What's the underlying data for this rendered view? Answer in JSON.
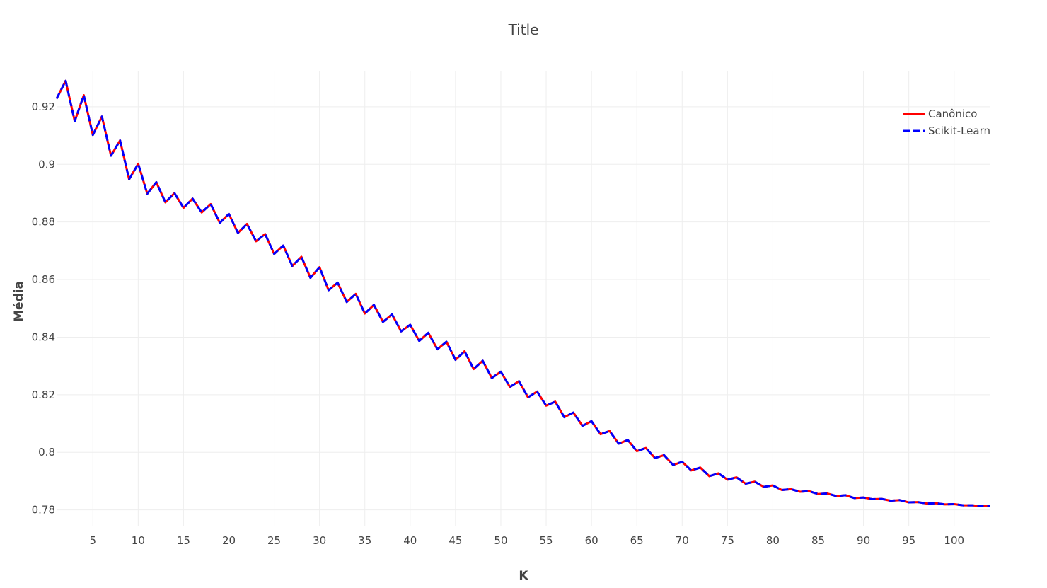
{
  "chart_data": {
    "type": "line",
    "title": "Title",
    "xlabel": "K",
    "ylabel": "Média",
    "xlim": [
      1,
      104
    ],
    "ylim": [
      0.7745,
      0.9325
    ],
    "x_ticks": [
      5,
      10,
      15,
      20,
      25,
      30,
      35,
      40,
      45,
      50,
      55,
      60,
      65,
      70,
      75,
      80,
      85,
      90,
      95,
      100
    ],
    "y_ticks": [
      0.78,
      0.8,
      0.82,
      0.84,
      0.86,
      0.88,
      0.9,
      0.92
    ],
    "y_tick_labels": [
      "0.78",
      "0.8",
      "0.82",
      "0.84",
      "0.86",
      "0.88",
      "0.9",
      "0.92"
    ],
    "grid": true,
    "legend_position": "top-right",
    "series": [
      {
        "name": "Canônico",
        "color": "#ff0000",
        "dash": "solid",
        "x": [
          1,
          2,
          3,
          4,
          5,
          6,
          7,
          8,
          9,
          10,
          11,
          12,
          13,
          14,
          15,
          16,
          17,
          18,
          19,
          20,
          21,
          22,
          23,
          24,
          25,
          26,
          27,
          28,
          29,
          30,
          31,
          32,
          33,
          34,
          35,
          36,
          37,
          38,
          39,
          40,
          41,
          42,
          43,
          44,
          45,
          46,
          47,
          48,
          49,
          50,
          51,
          52,
          53,
          54,
          55,
          56,
          57,
          58,
          59,
          60,
          61,
          62,
          63,
          64,
          65,
          66,
          67,
          68,
          69,
          70,
          71,
          72,
          73,
          74,
          75,
          76,
          77,
          78,
          79,
          80,
          81,
          82,
          83,
          84,
          85,
          86,
          87,
          88,
          89,
          90,
          91,
          92,
          93,
          94,
          95,
          96,
          97,
          98,
          99,
          100,
          101,
          102,
          103,
          104
        ],
        "values": [
          0.9228,
          0.929,
          0.915,
          0.924,
          0.9102,
          0.9166,
          0.903,
          0.9083,
          0.8948,
          0.9002,
          0.8898,
          0.8938,
          0.8868,
          0.89,
          0.8849,
          0.8881,
          0.8833,
          0.8862,
          0.8797,
          0.8828,
          0.8762,
          0.8793,
          0.8733,
          0.8758,
          0.8689,
          0.8718,
          0.8647,
          0.8679,
          0.8606,
          0.8643,
          0.8563,
          0.8589,
          0.8522,
          0.855,
          0.8482,
          0.8512,
          0.8453,
          0.8479,
          0.842,
          0.8443,
          0.8387,
          0.8415,
          0.8358,
          0.8384,
          0.8321,
          0.8351,
          0.8289,
          0.8318,
          0.8258,
          0.828,
          0.8227,
          0.8247,
          0.8191,
          0.8211,
          0.8162,
          0.8176,
          0.8122,
          0.8138,
          0.8092,
          0.8108,
          0.8063,
          0.8074,
          0.803,
          0.8043,
          0.8004,
          0.8015,
          0.798,
          0.799,
          0.7956,
          0.7967,
          0.7937,
          0.7947,
          0.7917,
          0.7927,
          0.7905,
          0.7913,
          0.7891,
          0.7898,
          0.788,
          0.7885,
          0.7869,
          0.7872,
          0.7863,
          0.7865,
          0.7855,
          0.7857,
          0.7848,
          0.7851,
          0.7841,
          0.7843,
          0.7837,
          0.7838,
          0.7832,
          0.7834,
          0.7826,
          0.7827,
          0.7822,
          0.7823,
          0.7819,
          0.782,
          0.7816,
          0.7816,
          0.7813,
          0.7813
        ]
      },
      {
        "name": "Scikit-Learn",
        "color": "#0000ff",
        "dash": "dash",
        "x": [
          1,
          2,
          3,
          4,
          5,
          6,
          7,
          8,
          9,
          10,
          11,
          12,
          13,
          14,
          15,
          16,
          17,
          18,
          19,
          20,
          21,
          22,
          23,
          24,
          25,
          26,
          27,
          28,
          29,
          30,
          31,
          32,
          33,
          34,
          35,
          36,
          37,
          38,
          39,
          40,
          41,
          42,
          43,
          44,
          45,
          46,
          47,
          48,
          49,
          50,
          51,
          52,
          53,
          54,
          55,
          56,
          57,
          58,
          59,
          60,
          61,
          62,
          63,
          64,
          65,
          66,
          67,
          68,
          69,
          70,
          71,
          72,
          73,
          74,
          75,
          76,
          77,
          78,
          79,
          80,
          81,
          82,
          83,
          84,
          85,
          86,
          87,
          88,
          89,
          90,
          91,
          92,
          93,
          94,
          95,
          96,
          97,
          98,
          99,
          100,
          101,
          102,
          103,
          104
        ],
        "values": [
          0.9228,
          0.929,
          0.915,
          0.924,
          0.9102,
          0.9166,
          0.903,
          0.9083,
          0.8948,
          0.9002,
          0.8898,
          0.8938,
          0.8868,
          0.89,
          0.8849,
          0.8881,
          0.8833,
          0.8862,
          0.8797,
          0.8828,
          0.8762,
          0.8793,
          0.8733,
          0.8758,
          0.8689,
          0.8718,
          0.8647,
          0.8679,
          0.8606,
          0.8643,
          0.8563,
          0.8589,
          0.8522,
          0.855,
          0.8482,
          0.8512,
          0.8453,
          0.8479,
          0.842,
          0.8443,
          0.8387,
          0.8415,
          0.8358,
          0.8384,
          0.8321,
          0.8351,
          0.8289,
          0.8318,
          0.8258,
          0.828,
          0.8227,
          0.8247,
          0.8191,
          0.8211,
          0.8162,
          0.8176,
          0.8122,
          0.8138,
          0.8092,
          0.8108,
          0.8063,
          0.8074,
          0.803,
          0.8043,
          0.8004,
          0.8015,
          0.798,
          0.799,
          0.7956,
          0.7967,
          0.7937,
          0.7947,
          0.7917,
          0.7927,
          0.7905,
          0.7913,
          0.7891,
          0.7898,
          0.788,
          0.7885,
          0.7869,
          0.7872,
          0.7863,
          0.7865,
          0.7855,
          0.7857,
          0.7848,
          0.7851,
          0.7841,
          0.7843,
          0.7837,
          0.7838,
          0.7832,
          0.7834,
          0.7826,
          0.7827,
          0.7822,
          0.7823,
          0.7819,
          0.782,
          0.7816,
          0.7816,
          0.7813,
          0.7813
        ]
      }
    ]
  }
}
